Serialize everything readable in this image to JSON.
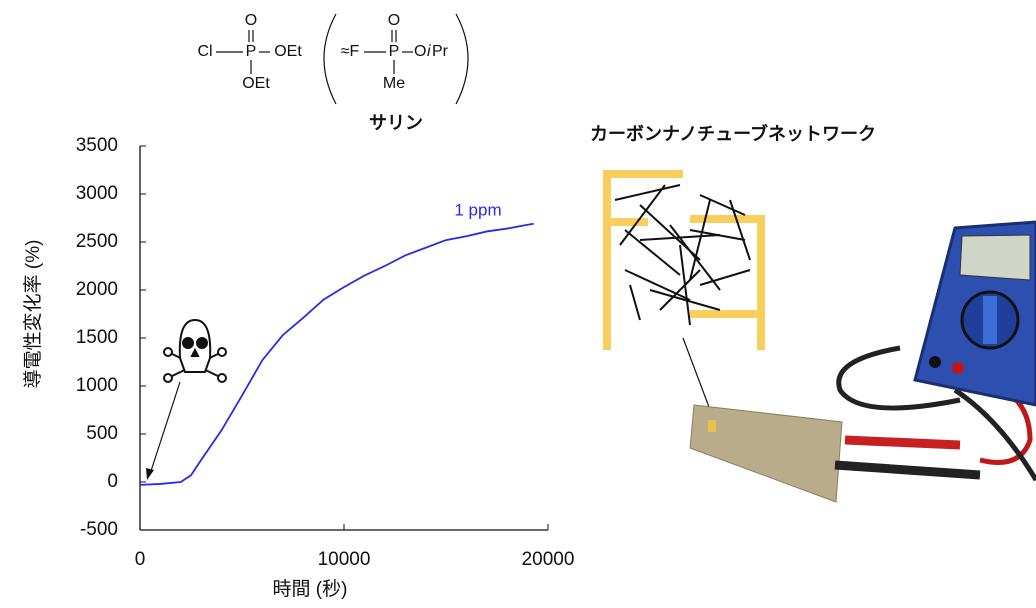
{
  "chart_data": {
    "type": "line",
    "x": [
      0,
      1000,
      2000,
      2500,
      3000,
      4000,
      5000,
      6000,
      7000,
      8000,
      9000,
      10000,
      11000,
      12000,
      13000,
      14000,
      15000,
      16000,
      17000,
      18000,
      19000,
      19300
    ],
    "series": [
      {
        "name": "1 ppm",
        "color": "#2a2ae6",
        "values": [
          -30,
          -20,
          0,
          70,
          230,
          540,
          900,
          1270,
          1530,
          1710,
          1900,
          2030,
          2150,
          2250,
          2360,
          2440,
          2520,
          2560,
          2610,
          2640,
          2680,
          2690
        ]
      }
    ],
    "xlim": [
      0,
      20000
    ],
    "xticks": [
      0,
      10000,
      20000
    ],
    "ylim": [
      -500,
      3500
    ],
    "yticks": [
      -500,
      0,
      500,
      1000,
      1500,
      2000,
      2500,
      3000,
      3500
    ],
    "grid": false,
    "x_label": "時間 (秒)",
    "y_label": "導電性変化率 (%)",
    "annotations": {
      "sarin": "サリン",
      "network": "カーボンナノチューブネットワーク",
      "structure": [
        "O",
        "Cl",
        "P",
        "OEt",
        "OEt",
        "O",
        "≈F",
        "P",
        "O",
        "i",
        "Pr",
        "Me"
      ]
    }
  }
}
